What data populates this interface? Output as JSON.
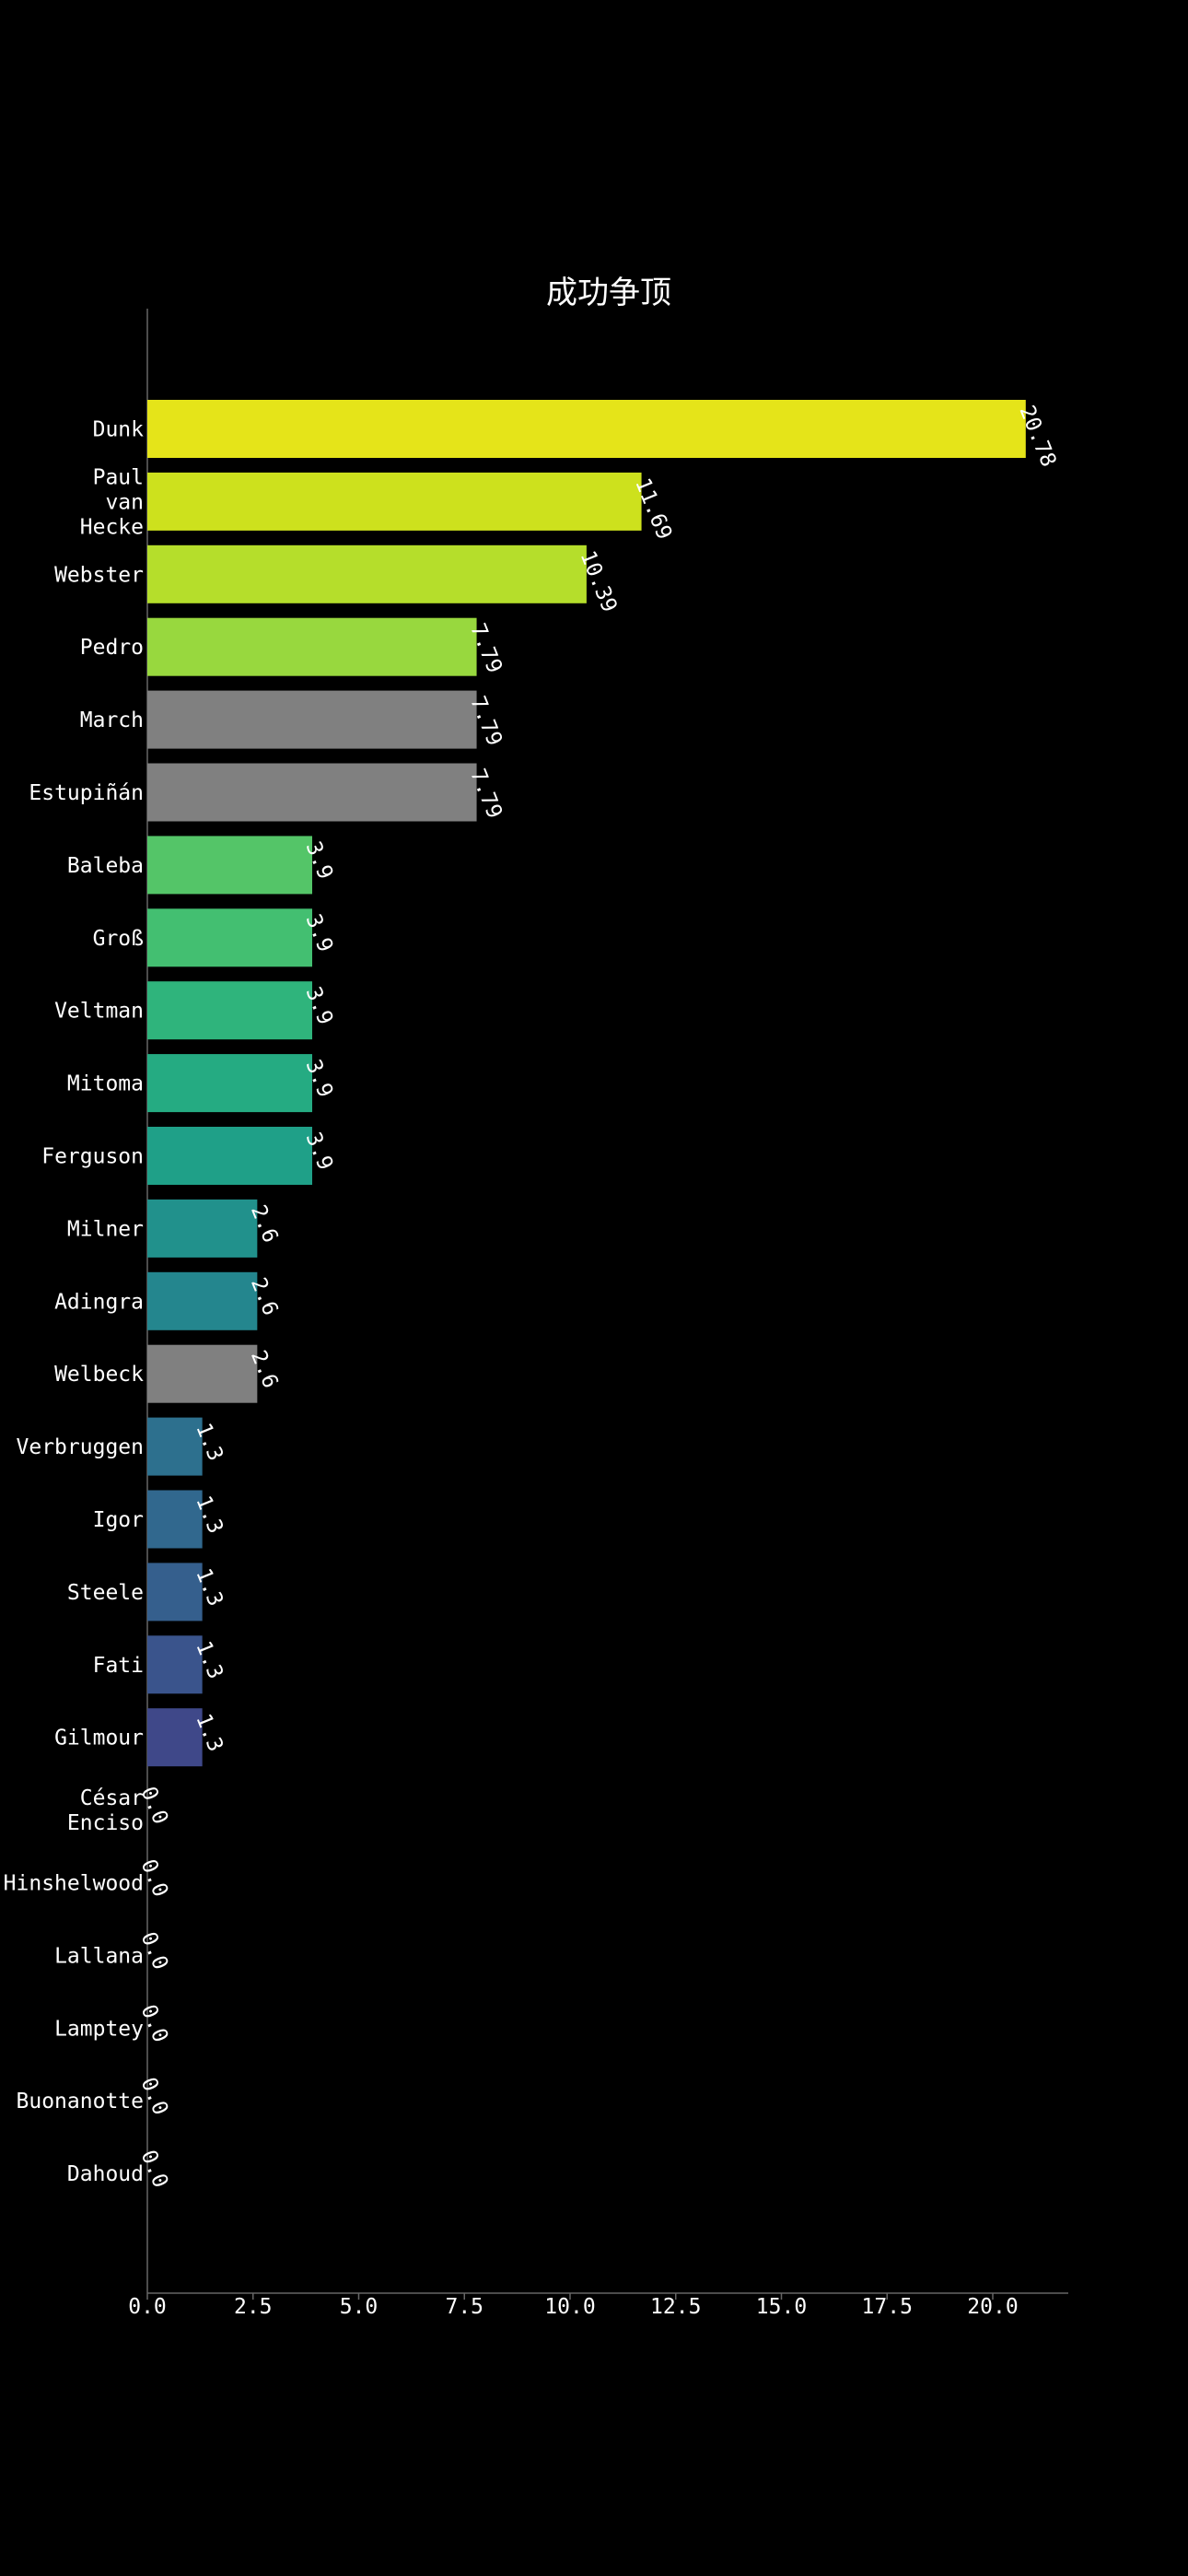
{
  "chart_data": {
    "type": "bar",
    "orientation": "horizontal",
    "title": "成功争顶",
    "xlabel": "",
    "ylabel": "",
    "xlim": [
      0,
      22
    ],
    "x_ticks": [
      "0.0",
      "2.5",
      "5.0",
      "7.5",
      "10.0",
      "12.5",
      "15.0",
      "17.5",
      "20.0"
    ],
    "x_tick_values": [
      0,
      2.5,
      5,
      7.5,
      10,
      12.5,
      15,
      17.5,
      20
    ],
    "grid": false,
    "legend": "none",
    "categories": [
      "Dunk",
      "Paul van Hecke",
      "Webster",
      "Pedro",
      "March",
      "Estupiñán",
      "Baleba",
      "Groß",
      "Veltman",
      "Mitoma",
      "Ferguson",
      "Milner",
      "Adingra",
      "Welbeck",
      "Verbruggen",
      "Igor",
      "Steele",
      "Fati",
      "Gilmour",
      "César Enciso",
      "Hinshelwood",
      "Lallana",
      "Lamptey",
      "Buonanotte",
      "Dahoud"
    ],
    "category_lines": [
      [
        "Dunk"
      ],
      [
        "Paul",
        "van",
        "Hecke"
      ],
      [
        "Webster"
      ],
      [
        "Pedro"
      ],
      [
        "March"
      ],
      [
        "Estupiñán"
      ],
      [
        "Baleba"
      ],
      [
        "Groß"
      ],
      [
        "Veltman"
      ],
      [
        "Mitoma"
      ],
      [
        "Ferguson"
      ],
      [
        "Milner"
      ],
      [
        "Adingra"
      ],
      [
        "Welbeck"
      ],
      [
        "Verbruggen"
      ],
      [
        "Igor"
      ],
      [
        "Steele"
      ],
      [
        "Fati"
      ],
      [
        "Gilmour"
      ],
      [
        "César",
        "Enciso"
      ],
      [
        "Hinshelwood"
      ],
      [
        "Lallana"
      ],
      [
        "Lamptey"
      ],
      [
        "Buonanotte"
      ],
      [
        "Dahoud"
      ]
    ],
    "values": [
      20.78,
      11.69,
      10.39,
      7.79,
      7.79,
      7.79,
      3.9,
      3.9,
      3.9,
      3.9,
      3.9,
      2.6,
      2.6,
      2.6,
      1.3,
      1.3,
      1.3,
      1.3,
      1.3,
      0.0,
      0.0,
      0.0,
      0.0,
      0.0,
      0.0
    ],
    "value_labels": [
      "20.78",
      "11.69",
      "10.39",
      "7.79",
      "7.79",
      "7.79",
      "3.9",
      "3.9",
      "3.9",
      "3.9",
      "3.9",
      "2.6",
      "2.6",
      "2.6",
      "1.3",
      "1.3",
      "1.3",
      "1.3",
      "1.3",
      "0.0",
      "0.0",
      "0.0",
      "0.0",
      "0.0",
      "0.0"
    ],
    "colors": [
      "#e5e419",
      "#cde11d",
      "#b5de2b",
      "#98d83e",
      "#808080",
      "#808080",
      "#54c568",
      "#43bf71",
      "#2fb47c",
      "#25ab82",
      "#1fa088",
      "#21918c",
      "#24868e",
      "#808080",
      "#2d708e",
      "#31688e",
      "#355f8d",
      "#3a548c",
      "#3f4889",
      "#433d84",
      "#472f7d",
      "#482374",
      "#48186a",
      "#470d60",
      "#440154"
    ],
    "background": "#000000",
    "text_color": "#ffffff"
  }
}
